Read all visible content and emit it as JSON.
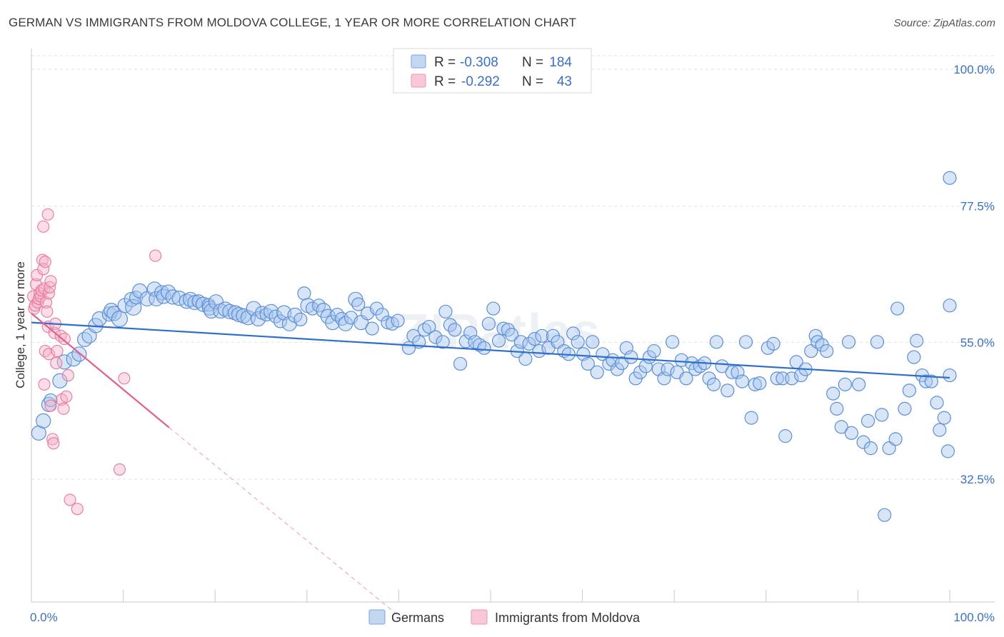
{
  "header": {
    "title": "GERMAN VS IMMIGRANTS FROM MOLDOVA COLLEGE, 1 YEAR OR MORE CORRELATION CHART",
    "source": "Source: ZipAtlas.com"
  },
  "watermark": "ZIPatlas",
  "colors": {
    "blue": "#5b8fd6",
    "blue_line": "#2f6fc9",
    "pink": "#e8779e",
    "pink_line": "#e06090",
    "axis_label": "#3b6fc4"
  },
  "legend_top": [
    {
      "r_label": "R =",
      "r_value": "-0.308",
      "n_label": "N =",
      "n_value": "184"
    },
    {
      "r_label": "R =",
      "r_value": "-0.292",
      "n_label": "N =",
      "n_value": "43"
    }
  ],
  "legend_bottom": [
    "Germans",
    "Immigrants from Moldova"
  ],
  "chart_data": {
    "type": "scatter",
    "title": "GERMAN VS IMMIGRANTS FROM MOLDOVA COLLEGE, 1 YEAR OR MORE CORRELATION CHART",
    "xlabel": "",
    "ylabel": "College, 1 year or more",
    "xlim": [
      0,
      100
    ],
    "ylim": [
      10,
      103
    ],
    "x_tick_labels": [
      "0.0%",
      "100.0%"
    ],
    "y_ticks": [
      32.5,
      55.0,
      77.5,
      100.0
    ],
    "y_tick_labels": [
      "32.5%",
      "55.0%",
      "77.5%",
      "100.0%"
    ],
    "series": [
      {
        "name": "Germans",
        "r": -0.308,
        "n": 184,
        "trend": {
          "x": [
            0,
            100
          ],
          "y": [
            58.3,
            49.2
          ]
        },
        "points": [
          [
            0.8,
            40.1,
            2
          ],
          [
            1.3,
            42.1,
            2
          ],
          [
            1.9,
            44.8,
            2
          ],
          [
            2.1,
            45.5,
            1
          ],
          [
            3.1,
            48.7,
            2
          ],
          [
            3.6,
            51.8,
            2
          ],
          [
            4.6,
            52.3,
            2
          ],
          [
            5.2,
            53.1,
            2
          ],
          [
            5.8,
            55.5,
            2
          ],
          [
            6.3,
            56.1,
            2
          ],
          [
            7.0,
            57.8,
            2
          ],
          [
            7.4,
            58.9,
            2
          ],
          [
            8.5,
            59.7,
            2
          ],
          [
            8.7,
            60.3,
            2
          ],
          [
            9.0,
            59.8,
            2
          ],
          [
            9.6,
            58.9,
            3
          ],
          [
            10.2,
            61.1,
            2
          ],
          [
            10.9,
            62.1,
            2
          ],
          [
            11.1,
            60.8,
            3
          ],
          [
            11.4,
            62.4,
            1
          ],
          [
            11.8,
            63.5,
            2
          ],
          [
            12.6,
            62.2,
            2
          ],
          [
            13.4,
            63.8,
            2
          ],
          [
            13.6,
            62.2,
            2
          ],
          [
            14.2,
            63.2,
            2
          ],
          [
            14.4,
            62.6,
            2
          ],
          [
            14.9,
            63.3,
            2
          ],
          [
            15.4,
            62.5,
            2
          ],
          [
            16.1,
            62.3,
            2
          ],
          [
            16.9,
            61.8,
            2
          ],
          [
            17.3,
            62.1,
            2
          ],
          [
            17.8,
            61.6,
            2
          ],
          [
            18.2,
            61.8,
            1
          ],
          [
            18.7,
            61.3,
            2
          ],
          [
            19.3,
            61.2,
            1
          ],
          [
            19.4,
            60.7,
            2
          ],
          [
            19.6,
            60.2,
            2
          ],
          [
            20.1,
            61.7,
            2
          ],
          [
            20.6,
            60.2,
            2
          ],
          [
            21.1,
            60.5,
            2
          ],
          [
            21.6,
            60.1,
            2
          ],
          [
            22.2,
            59.9,
            2
          ],
          [
            22.6,
            59.6,
            2
          ],
          [
            23.1,
            59.4,
            2
          ],
          [
            23.6,
            59.1,
            2
          ],
          [
            24.2,
            60.6,
            2
          ],
          [
            24.7,
            58.9,
            2
          ],
          [
            25.1,
            59.9,
            1
          ],
          [
            25.6,
            59.6,
            1
          ],
          [
            26.1,
            60.1,
            2
          ],
          [
            26.6,
            59.3,
            1
          ],
          [
            27.1,
            58.5,
            1
          ],
          [
            27.5,
            59.9,
            2
          ],
          [
            28.1,
            58.1,
            2
          ],
          [
            28.7,
            59.5,
            2
          ],
          [
            29.3,
            58.8,
            1
          ],
          [
            29.7,
            63.1,
            1
          ],
          [
            30.1,
            61.1,
            2
          ],
          [
            30.6,
            60.6,
            1
          ],
          [
            31.3,
            61.1,
            1
          ],
          [
            31.8,
            60.3,
            2
          ],
          [
            32.3,
            59.3,
            2
          ],
          [
            32.8,
            58.3,
            2
          ],
          [
            33.3,
            59.6,
            1
          ],
          [
            33.8,
            58.9,
            1
          ],
          [
            34.2,
            58.1,
            2
          ],
          [
            34.8,
            59.1,
            1
          ],
          [
            35.3,
            62.1,
            2
          ],
          [
            35.6,
            61.3,
            1
          ],
          [
            35.9,
            58.3,
            2
          ],
          [
            36.6,
            59.8,
            1
          ],
          [
            37.1,
            57.3,
            1
          ],
          [
            37.6,
            60.6,
            1
          ],
          [
            38.2,
            59.6,
            1
          ],
          [
            38.8,
            58.3,
            1
          ],
          [
            39.3,
            58.1,
            1
          ],
          [
            39.9,
            58.6,
            1
          ],
          [
            41.1,
            54.1,
            1
          ],
          [
            41.6,
            56.1,
            1
          ],
          [
            42.2,
            55.1,
            1
          ],
          [
            42.8,
            57.1,
            1
          ],
          [
            43.3,
            57.6,
            1
          ],
          [
            44.0,
            55.9,
            1
          ],
          [
            44.8,
            55.1,
            1
          ],
          [
            45.1,
            60.1,
            1
          ],
          [
            45.6,
            57.9,
            1
          ],
          [
            46.1,
            57.1,
            1
          ],
          [
            46.7,
            51.5,
            1
          ],
          [
            47.3,
            55.2,
            1
          ],
          [
            47.8,
            56.6,
            1
          ],
          [
            48.3,
            55.1,
            1
          ],
          [
            48.8,
            54.6,
            1
          ],
          [
            49.3,
            54.1,
            1
          ],
          [
            49.8,
            58.1,
            1
          ],
          [
            50.3,
            60.6,
            1
          ],
          [
            50.9,
            55.3,
            1
          ],
          [
            51.4,
            57.3,
            1
          ],
          [
            51.9,
            57.1,
            1
          ],
          [
            52.3,
            56.3,
            1
          ],
          [
            52.9,
            53.6,
            1
          ],
          [
            53.3,
            55.1,
            1
          ],
          [
            53.8,
            52.3,
            1
          ],
          [
            54.2,
            54.8,
            1
          ],
          [
            54.8,
            55.6,
            1
          ],
          [
            55.3,
            53.6,
            1
          ],
          [
            55.6,
            56.1,
            1
          ],
          [
            56.3,
            54.1,
            1
          ],
          [
            56.8,
            56.1,
            1
          ],
          [
            57.3,
            55.1,
            1
          ],
          [
            58.0,
            53.6,
            1
          ],
          [
            58.5,
            53.1,
            1
          ],
          [
            59.0,
            56.5,
            1
          ],
          [
            59.5,
            55.1,
            1
          ],
          [
            60.1,
            53.1,
            1
          ],
          [
            60.6,
            51.5,
            1
          ],
          [
            61.1,
            55.1,
            1
          ],
          [
            61.6,
            50.1,
            1
          ],
          [
            62.2,
            53.1,
            1
          ],
          [
            62.9,
            51.5,
            1
          ],
          [
            63.3,
            52.1,
            1
          ],
          [
            63.8,
            50.6,
            1
          ],
          [
            64.3,
            51.6,
            1
          ],
          [
            64.8,
            54.1,
            1
          ],
          [
            65.3,
            52.6,
            1
          ],
          [
            65.8,
            49.1,
            1
          ],
          [
            66.3,
            50.1,
            1
          ],
          [
            66.9,
            51.1,
            1
          ],
          [
            67.3,
            52.6,
            1
          ],
          [
            67.8,
            53.6,
            1
          ],
          [
            68.3,
            50.6,
            1
          ],
          [
            68.9,
            49.1,
            1
          ],
          [
            69.3,
            50.6,
            1
          ],
          [
            69.8,
            55.1,
            1
          ],
          [
            70.3,
            50.1,
            1
          ],
          [
            70.8,
            52.1,
            1
          ],
          [
            71.3,
            49.1,
            1
          ],
          [
            71.9,
            51.6,
            1
          ],
          [
            72.3,
            50.6,
            1
          ],
          [
            72.8,
            51.1,
            1
          ],
          [
            73.3,
            51.6,
            1
          ],
          [
            73.8,
            49.1,
            1
          ],
          [
            74.3,
            48.1,
            1
          ],
          [
            74.6,
            55.1,
            1
          ],
          [
            75.2,
            51.1,
            1
          ],
          [
            75.8,
            47.1,
            1
          ],
          [
            76.3,
            50.1,
            1
          ],
          [
            76.9,
            50.1,
            1
          ],
          [
            77.4,
            48.6,
            1
          ],
          [
            77.8,
            55.1,
            1
          ],
          [
            78.4,
            42.6,
            1
          ],
          [
            78.8,
            48.1,
            1
          ],
          [
            79.3,
            48.3,
            1
          ],
          [
            80.2,
            54.1,
            1
          ],
          [
            80.8,
            54.8,
            1
          ],
          [
            81.2,
            49.1,
            1
          ],
          [
            81.8,
            49.1,
            1
          ],
          [
            82.1,
            39.6,
            1
          ],
          [
            82.8,
            49.1,
            1
          ],
          [
            83.3,
            51.8,
            1
          ],
          [
            83.8,
            49.6,
            1
          ],
          [
            84.3,
            50.6,
            1
          ],
          [
            84.9,
            53.6,
            1
          ],
          [
            85.4,
            56.1,
            1
          ],
          [
            85.6,
            55.1,
            1
          ],
          [
            86.1,
            54.6,
            1
          ],
          [
            86.6,
            53.6,
            1
          ],
          [
            87.3,
            46.6,
            1
          ],
          [
            87.7,
            44.1,
            1
          ],
          [
            88.2,
            41.1,
            1
          ],
          [
            88.6,
            48.1,
            1
          ],
          [
            89.0,
            55.1,
            1
          ],
          [
            89.3,
            40.1,
            1
          ],
          [
            90.1,
            48.1,
            1
          ],
          [
            90.6,
            38.6,
            1
          ],
          [
            91.1,
            42.1,
            1
          ],
          [
            91.4,
            37.6,
            1
          ],
          [
            92.1,
            55.1,
            1
          ],
          [
            92.6,
            43.1,
            1
          ],
          [
            92.9,
            26.6,
            1
          ],
          [
            93.4,
            37.6,
            1
          ],
          [
            94.1,
            39.1,
            1
          ],
          [
            94.3,
            60.6,
            1
          ],
          [
            95.1,
            44.1,
            1
          ],
          [
            95.6,
            47.1,
            1
          ],
          [
            96.1,
            52.6,
            1
          ],
          [
            96.4,
            55.3,
            1
          ],
          [
            97.0,
            49.6,
            1
          ],
          [
            97.4,
            48.6,
            1
          ],
          [
            98.0,
            48.6,
            1
          ],
          [
            98.6,
            45.1,
            1
          ],
          [
            98.9,
            40.6,
            1
          ],
          [
            99.4,
            42.6,
            1
          ],
          [
            99.8,
            37.1,
            1
          ],
          [
            100.0,
            49.6,
            1
          ],
          [
            100.0,
            61.1,
            1
          ],
          [
            100.0,
            82.1,
            1
          ]
        ]
      },
      {
        "name": "Immigrants from Moldova",
        "r": -0.292,
        "n": 43,
        "trend": {
          "x": [
            0,
            15
          ],
          "y": [
            59.8,
            41.0
          ]
        },
        "trend_dashed": {
          "x": [
            15,
            40
          ],
          "y": [
            41.0,
            10.0
          ]
        },
        "points": [
          [
            0.2,
            62.6
          ],
          [
            0.3,
            60.6
          ],
          [
            0.4,
            61.1
          ],
          [
            0.5,
            64.6
          ],
          [
            0.6,
            66.1
          ],
          [
            0.7,
            61.6
          ],
          [
            0.8,
            62.2
          ],
          [
            0.9,
            63.1
          ],
          [
            1.0,
            62.6
          ],
          [
            1.1,
            63.6
          ],
          [
            1.2,
            68.6
          ],
          [
            1.3,
            67.1
          ],
          [
            1.4,
            63.9
          ],
          [
            1.5,
            68.3
          ],
          [
            1.6,
            61.6
          ],
          [
            1.7,
            60.1
          ],
          [
            1.8,
            57.6
          ],
          [
            1.9,
            63.1
          ],
          [
            2.0,
            64.1
          ],
          [
            2.1,
            65.1
          ],
          [
            1.4,
            48.1
          ],
          [
            1.5,
            53.6
          ],
          [
            1.9,
            53.1
          ],
          [
            2.1,
            44.6
          ],
          [
            2.3,
            39.1
          ],
          [
            2.4,
            38.4
          ],
          [
            2.5,
            56.6
          ],
          [
            2.6,
            58.1
          ],
          [
            2.7,
            51.6
          ],
          [
            2.8,
            53.6
          ],
          [
            3.2,
            56.1
          ],
          [
            3.3,
            45.6
          ],
          [
            3.5,
            44.1
          ],
          [
            3.6,
            55.6
          ],
          [
            3.8,
            46.1
          ],
          [
            4.0,
            49.6
          ],
          [
            4.2,
            29.1
          ],
          [
            5.0,
            27.6
          ],
          [
            1.3,
            74.1
          ],
          [
            1.8,
            76.1
          ],
          [
            9.6,
            34.1
          ],
          [
            10.1,
            49.1
          ],
          [
            13.5,
            69.3
          ]
        ]
      }
    ]
  }
}
